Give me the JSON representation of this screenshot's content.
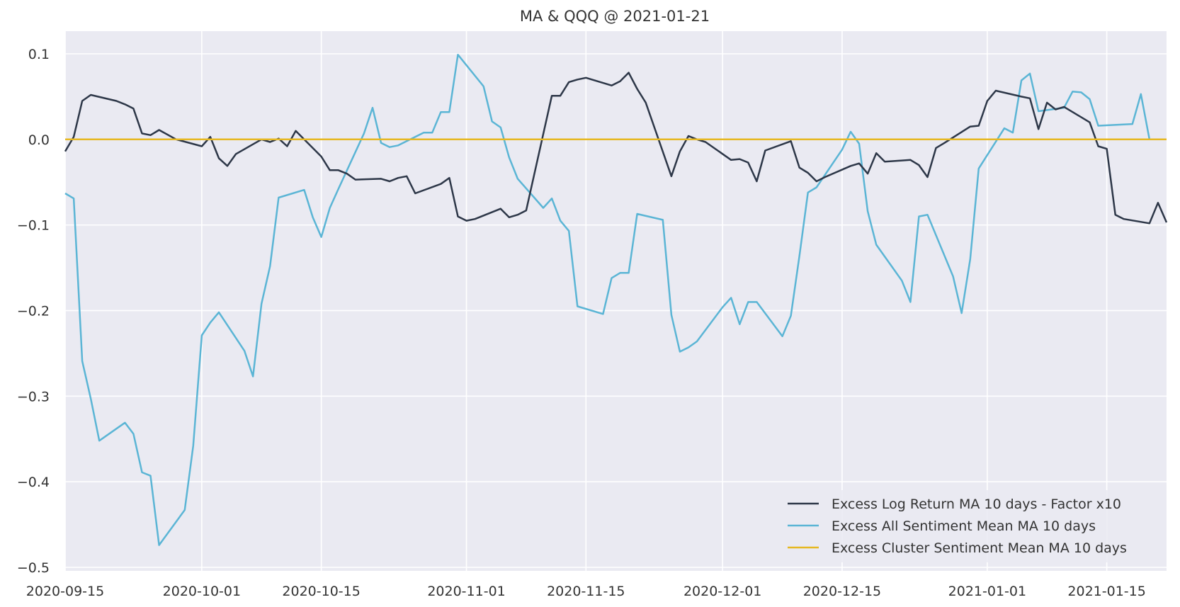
{
  "chart_data": {
    "type": "line",
    "title": "MA & QQQ @ 2021-01-21",
    "xlabel": "",
    "ylabel": "",
    "x_axis": "date",
    "xlim": [
      "2020-09-15",
      "2021-01-21"
    ],
    "ylim": [
      -0.5,
      0.12
    ],
    "x_ticks": [
      "2020-09-15",
      "2020-10-01",
      "2020-10-15",
      "2020-11-01",
      "2020-11-15",
      "2020-12-01",
      "2020-12-15",
      "2021-01-01",
      "2021-01-15"
    ],
    "y_ticks": [
      "0.1",
      "0.0",
      "−0.1",
      "−0.2",
      "−0.3",
      "−0.4",
      "−0.5"
    ],
    "y_tick_values": [
      0.1,
      0.0,
      -0.1,
      -0.2,
      -0.3,
      -0.4,
      -0.5
    ],
    "grid": true,
    "legend_position": "bottom-right",
    "colors": {
      "background": "#eaeaf2",
      "grid": "#ffffff",
      "series_1": "#2d3748",
      "series_2": "#5bb5d5",
      "series_3": "#e6b822"
    },
    "series": [
      {
        "name": "Excess Log Return MA 10 days - Factor x10",
        "color": "#2d3748",
        "points": [
          [
            "2020-09-15",
            -0.014
          ],
          [
            "2020-09-16",
            0.003
          ],
          [
            "2020-09-17",
            0.045
          ],
          [
            "2020-09-18",
            0.052
          ],
          [
            "2020-09-21",
            0.045
          ],
          [
            "2020-09-22",
            0.041
          ],
          [
            "2020-09-23",
            0.036
          ],
          [
            "2020-09-24",
            0.007
          ],
          [
            "2020-09-25",
            0.005
          ],
          [
            "2020-09-26",
            0.011
          ],
          [
            "2020-09-28",
            0.0
          ],
          [
            "2020-10-01",
            -0.008
          ],
          [
            "2020-10-02",
            0.003
          ],
          [
            "2020-10-03",
            -0.022
          ],
          [
            "2020-10-04",
            -0.031
          ],
          [
            "2020-10-05",
            -0.017
          ],
          [
            "2020-10-08",
            0.0
          ],
          [
            "2020-10-09",
            -0.003
          ],
          [
            "2020-10-10",
            0.001
          ],
          [
            "2020-10-11",
            -0.008
          ],
          [
            "2020-10-12",
            0.01
          ],
          [
            "2020-10-15",
            -0.02
          ],
          [
            "2020-10-16",
            -0.036
          ],
          [
            "2020-10-17",
            -0.036
          ],
          [
            "2020-10-18",
            -0.04
          ],
          [
            "2020-10-19",
            -0.047
          ],
          [
            "2020-10-22",
            -0.046
          ],
          [
            "2020-10-23",
            -0.049
          ],
          [
            "2020-10-24",
            -0.045
          ],
          [
            "2020-10-25",
            -0.043
          ],
          [
            "2020-10-26",
            -0.063
          ],
          [
            "2020-10-29",
            -0.052
          ],
          [
            "2020-10-30",
            -0.045
          ],
          [
            "2020-10-31",
            -0.09
          ],
          [
            "2020-11-01",
            -0.095
          ],
          [
            "2020-11-02",
            -0.093
          ],
          [
            "2020-11-05",
            -0.081
          ],
          [
            "2020-11-06",
            -0.091
          ],
          [
            "2020-11-07",
            -0.088
          ],
          [
            "2020-11-08",
            -0.083
          ],
          [
            "2020-11-11",
            0.051
          ],
          [
            "2020-11-12",
            0.051
          ],
          [
            "2020-11-13",
            0.067
          ],
          [
            "2020-11-14",
            0.07
          ],
          [
            "2020-11-15",
            0.072
          ],
          [
            "2020-11-18",
            0.063
          ],
          [
            "2020-11-19",
            0.068
          ],
          [
            "2020-11-20",
            0.078
          ],
          [
            "2020-11-21",
            0.059
          ],
          [
            "2020-11-22",
            0.043
          ],
          [
            "2020-11-25",
            -0.043
          ],
          [
            "2020-11-26",
            -0.014
          ],
          [
            "2020-11-27",
            0.004
          ],
          [
            "2020-11-28",
            0.0
          ],
          [
            "2020-11-29",
            -0.003
          ],
          [
            "2020-12-02",
            -0.024
          ],
          [
            "2020-12-03",
            -0.023
          ],
          [
            "2020-12-04",
            -0.027
          ],
          [
            "2020-12-05",
            -0.049
          ],
          [
            "2020-12-06",
            -0.013
          ],
          [
            "2020-12-09",
            -0.002
          ],
          [
            "2020-12-10",
            -0.033
          ],
          [
            "2020-12-11",
            -0.039
          ],
          [
            "2020-12-12",
            -0.049
          ],
          [
            "2020-12-13",
            -0.044
          ],
          [
            "2020-12-16",
            -0.031
          ],
          [
            "2020-12-17",
            -0.028
          ],
          [
            "2020-12-18",
            -0.04
          ],
          [
            "2020-12-19",
            -0.016
          ],
          [
            "2020-12-20",
            -0.026
          ],
          [
            "2020-12-23",
            -0.024
          ],
          [
            "2020-12-24",
            -0.03
          ],
          [
            "2020-12-25",
            -0.044
          ],
          [
            "2020-12-26",
            -0.01
          ],
          [
            "2020-12-27",
            -0.004
          ],
          [
            "2020-12-30",
            0.015
          ],
          [
            "2020-12-31",
            0.016
          ],
          [
            "2021-01-01",
            0.045
          ],
          [
            "2021-01-02",
            0.057
          ],
          [
            "2021-01-05",
            0.05
          ],
          [
            "2021-01-06",
            0.048
          ],
          [
            "2021-01-07",
            0.012
          ],
          [
            "2021-01-08",
            0.043
          ],
          [
            "2021-01-09",
            0.035
          ],
          [
            "2021-01-10",
            0.038
          ],
          [
            "2021-01-13",
            0.02
          ],
          [
            "2021-01-14",
            -0.008
          ],
          [
            "2021-01-15",
            -0.011
          ],
          [
            "2021-01-16",
            -0.088
          ],
          [
            "2021-01-17",
            -0.093
          ],
          [
            "2021-01-20",
            -0.098
          ],
          [
            "2021-01-21",
            -0.074
          ],
          [
            "2021-01-22",
            -0.097
          ]
        ]
      },
      {
        "name": "Excess All Sentiment Mean MA 10 days",
        "color": "#5bb5d5",
        "points": [
          [
            "2020-09-15",
            -0.063
          ],
          [
            "2020-09-16",
            -0.069
          ],
          [
            "2020-09-17",
            -0.259
          ],
          [
            "2020-09-18",
            -0.303
          ],
          [
            "2020-09-19",
            -0.352
          ],
          [
            "2020-09-22",
            -0.331
          ],
          [
            "2020-09-23",
            -0.344
          ],
          [
            "2020-09-24",
            -0.389
          ],
          [
            "2020-09-25",
            -0.393
          ],
          [
            "2020-09-26",
            -0.474
          ],
          [
            "2020-09-29",
            -0.433
          ],
          [
            "2020-09-30",
            -0.358
          ],
          [
            "2020-10-01",
            -0.229
          ],
          [
            "2020-10-02",
            -0.214
          ],
          [
            "2020-10-03",
            -0.202
          ],
          [
            "2020-10-06",
            -0.247
          ],
          [
            "2020-10-07",
            -0.277
          ],
          [
            "2020-10-08",
            -0.192
          ],
          [
            "2020-10-09",
            -0.148
          ],
          [
            "2020-10-10",
            -0.068
          ],
          [
            "2020-10-13",
            -0.059
          ],
          [
            "2020-10-14",
            -0.091
          ],
          [
            "2020-10-15",
            -0.114
          ],
          [
            "2020-10-16",
            -0.08
          ],
          [
            "2020-10-17",
            -0.058
          ],
          [
            "2020-10-20",
            0.007
          ],
          [
            "2020-10-21",
            0.037
          ],
          [
            "2020-10-22",
            -0.004
          ],
          [
            "2020-10-23",
            -0.009
          ],
          [
            "2020-10-24",
            -0.007
          ],
          [
            "2020-10-27",
            0.008
          ],
          [
            "2020-10-28",
            0.008
          ],
          [
            "2020-10-29",
            0.032
          ],
          [
            "2020-10-30",
            0.032
          ],
          [
            "2020-10-31",
            0.099
          ],
          [
            "2020-11-03",
            0.062
          ],
          [
            "2020-11-04",
            0.021
          ],
          [
            "2020-11-05",
            0.014
          ],
          [
            "2020-11-06",
            -0.021
          ],
          [
            "2020-11-07",
            -0.046
          ],
          [
            "2020-11-10",
            -0.08
          ],
          [
            "2020-11-11",
            -0.069
          ],
          [
            "2020-11-12",
            -0.095
          ],
          [
            "2020-11-13",
            -0.107
          ],
          [
            "2020-11-14",
            -0.195
          ],
          [
            "2020-11-17",
            -0.204
          ],
          [
            "2020-11-18",
            -0.162
          ],
          [
            "2020-11-19",
            -0.156
          ],
          [
            "2020-11-20",
            -0.156
          ],
          [
            "2020-11-21",
            -0.087
          ],
          [
            "2020-11-24",
            -0.094
          ],
          [
            "2020-11-25",
            -0.205
          ],
          [
            "2020-11-26",
            -0.248
          ],
          [
            "2020-11-27",
            -0.243
          ],
          [
            "2020-11-28",
            -0.236
          ],
          [
            "2020-12-01",
            -0.196
          ],
          [
            "2020-12-02",
            -0.185
          ],
          [
            "2020-12-03",
            -0.216
          ],
          [
            "2020-12-04",
            -0.19
          ],
          [
            "2020-12-05",
            -0.19
          ],
          [
            "2020-12-08",
            -0.23
          ],
          [
            "2020-12-09",
            -0.206
          ],
          [
            "2020-12-10",
            -0.136
          ],
          [
            "2020-12-11",
            -0.062
          ],
          [
            "2020-12-12",
            -0.056
          ],
          [
            "2020-12-15",
            -0.012
          ],
          [
            "2020-12-16",
            0.009
          ],
          [
            "2020-12-17",
            -0.005
          ],
          [
            "2020-12-18",
            -0.084
          ],
          [
            "2020-12-19",
            -0.123
          ],
          [
            "2020-12-22",
            -0.165
          ],
          [
            "2020-12-23",
            -0.19
          ],
          [
            "2020-12-24",
            -0.09
          ],
          [
            "2020-12-25",
            -0.088
          ],
          [
            "2020-12-28",
            -0.16
          ],
          [
            "2020-12-29",
            -0.203
          ],
          [
            "2020-12-30",
            -0.14
          ],
          [
            "2020-12-31",
            -0.034
          ],
          [
            "2021-01-03",
            0.013
          ],
          [
            "2021-01-04",
            0.008
          ],
          [
            "2021-01-05",
            0.069
          ],
          [
            "2021-01-06",
            0.077
          ],
          [
            "2021-01-07",
            0.033
          ],
          [
            "2021-01-10",
            0.037
          ],
          [
            "2021-01-11",
            0.056
          ],
          [
            "2021-01-12",
            0.055
          ],
          [
            "2021-01-13",
            0.047
          ],
          [
            "2021-01-14",
            0.016
          ],
          [
            "2021-01-18",
            0.018
          ],
          [
            "2021-01-19",
            0.053
          ],
          [
            "2021-01-20",
            0.0
          ]
        ]
      },
      {
        "name": "Excess Cluster Sentiment Mean MA 10 days",
        "color": "#e6b822",
        "points": [
          [
            "2020-09-15",
            0.0
          ],
          [
            "2021-01-22",
            0.0
          ]
        ]
      }
    ]
  }
}
